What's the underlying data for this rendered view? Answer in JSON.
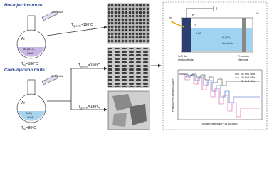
{
  "hot_injection": {
    "title": "Hot-injection route",
    "syringe": "TEA-OAM",
    "atmosphere": "Ar",
    "precursor": "Sn-(DDT)₂",
    "solvent": "OAM",
    "injection_temp": {
      "symbol": "T",
      "subscript": "inj",
      "value": "=180°C"
    }
  },
  "cold_injection": {
    "title": "Cold-injection route",
    "syringe": "TEA-OAM",
    "atmosphere": "Ar",
    "precursor": "SnCl₂",
    "solvent": "OAM",
    "injection_temp": {
      "symbol": "T",
      "subscript": "inj",
      "value": "=80°C"
    }
  },
  "growth_conditions": [
    {
      "symbol": "T",
      "subscript": "growth",
      "value": "=180°C"
    },
    {
      "symbol": "T",
      "subscript": "growth",
      "value": "=150°C"
    },
    {
      "symbol": "T",
      "subscript": "growth",
      "value": "=180°C"
    }
  ],
  "cell": {
    "photocathode": [
      "SnS film",
      "photocathode"
    ],
    "counter": [
      "Pt counter",
      "electrode"
    ],
    "gas": "Ar",
    "light": "hν",
    "electron": "e⁻",
    "products": [
      "H₂",
      "H₂O",
      "H₂O/O₂"
    ],
    "electrolyte": "electrolyte"
  },
  "plot": {
    "y_label": "Photocurrent density (µA/cm²)",
    "x_label": "Applied potential (V vs Ag/AgCl)",
    "legend": [
      "0D SnS NPs",
      "1D SnS NRs",
      "2D SnS NSs"
    ]
  }
}
